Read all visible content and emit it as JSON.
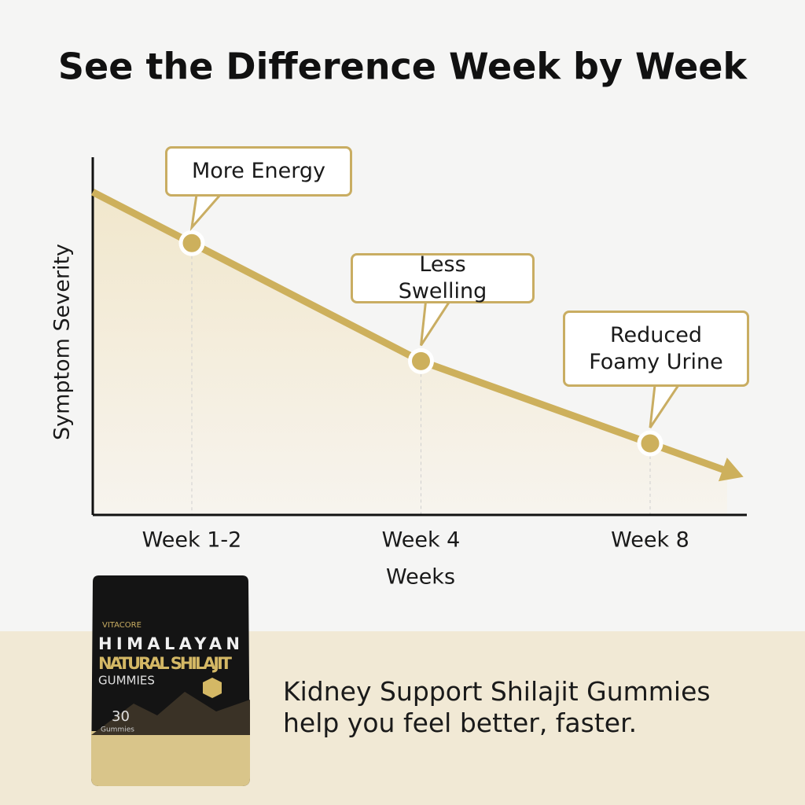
{
  "chart_data": {
    "type": "line",
    "title": "See the Difference Week by Week",
    "categories": [
      "Week 1-2",
      "Week 4",
      "Week 8"
    ],
    "values": [
      76,
      43,
      20
    ],
    "color": "#cdb05c",
    "ylim": [
      0,
      100
    ],
    "annotations": [
      "More Energy",
      "Less Swelling",
      "Reduced Foamy Urine"
    ],
    "ylabel": "Symptom Severity",
    "xlabel": "Weeks"
  },
  "product": {
    "brand": "VITACORE",
    "line1": "HIMALAYAN",
    "line2": "NATURAL SHILAJIT",
    "line3": "GUMMIES",
    "count": "30",
    "count_unit": "Gummies"
  },
  "tagline": "Kidney Support Shilajit Gummies help you feel better, faster."
}
